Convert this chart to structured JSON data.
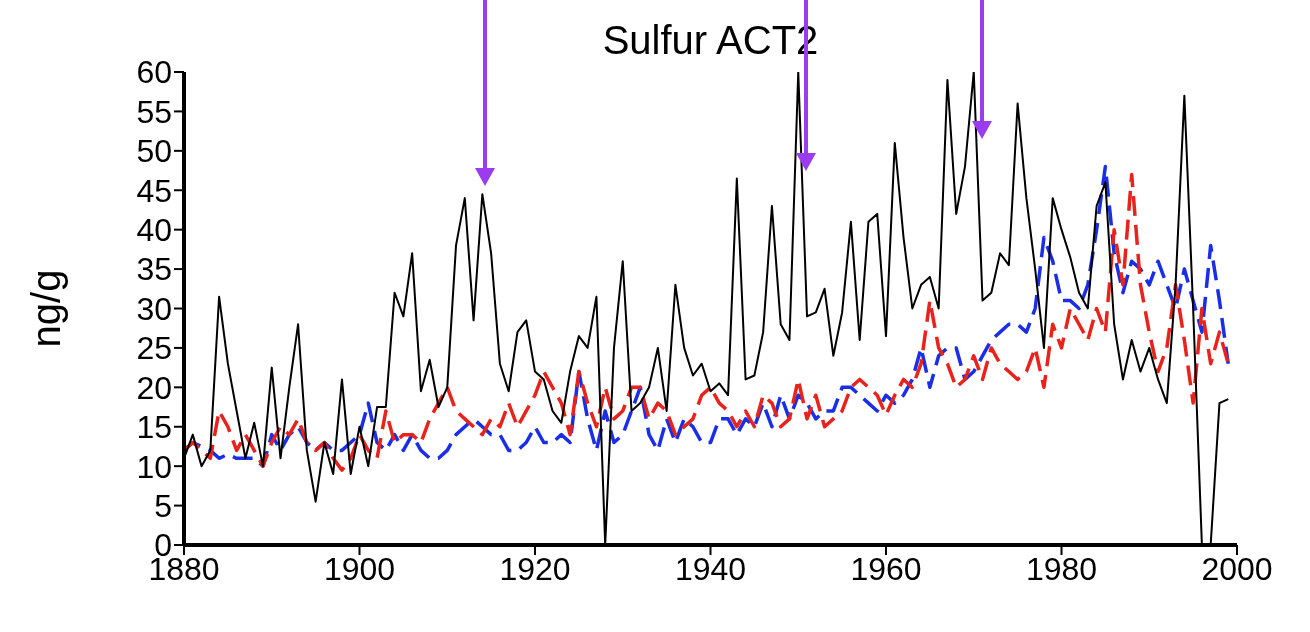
{
  "chart_data": {
    "type": "line",
    "title": "Sulfur ACT2",
    "ylabel": "ng/g",
    "x": [
      1880,
      1881,
      1882,
      1883,
      1884,
      1885,
      1886,
      1887,
      1888,
      1889,
      1890,
      1891,
      1892,
      1893,
      1894,
      1895,
      1896,
      1897,
      1898,
      1899,
      1900,
      1901,
      1902,
      1903,
      1904,
      1905,
      1906,
      1907,
      1908,
      1909,
      1910,
      1911,
      1912,
      1913,
      1914,
      1915,
      1916,
      1917,
      1918,
      1919,
      1920,
      1921,
      1922,
      1923,
      1924,
      1925,
      1926,
      1927,
      1928,
      1929,
      1930,
      1931,
      1932,
      1933,
      1934,
      1935,
      1936,
      1937,
      1938,
      1939,
      1940,
      1941,
      1942,
      1943,
      1944,
      1945,
      1946,
      1947,
      1948,
      1949,
      1950,
      1951,
      1952,
      1953,
      1954,
      1955,
      1956,
      1957,
      1958,
      1959,
      1960,
      1961,
      1962,
      1963,
      1964,
      1965,
      1966,
      1967,
      1968,
      1969,
      1970,
      1971,
      1972,
      1973,
      1974,
      1975,
      1976,
      1977,
      1978,
      1979,
      1980,
      1981,
      1982,
      1983,
      1984,
      1985,
      1986,
      1987,
      1988,
      1989,
      1990,
      1991,
      1992,
      1993,
      1994,
      1995,
      1996,
      1997,
      1998,
      1999
    ],
    "series": [
      {
        "color": "#000000",
        "line_style": "solid",
        "values": [
          11,
          14,
          10,
          12,
          31.5,
          23,
          17,
          11,
          15.5,
          10,
          22.5,
          11,
          20,
          28,
          12,
          5.5,
          13,
          9,
          21,
          9,
          15,
          10,
          17.5,
          17.5,
          32,
          29,
          37,
          19.5,
          23.5,
          17.5,
          20,
          38,
          44,
          28.5,
          44.5,
          37,
          23,
          19.5,
          27,
          28.5,
          22,
          21,
          17,
          15.5,
          22,
          26.5,
          25,
          31.5,
          0,
          25,
          36,
          17,
          18,
          20,
          25,
          17,
          33,
          25,
          21.5,
          23,
          19.5,
          20.5,
          19,
          46.5,
          21,
          21.5,
          27,
          43,
          28,
          26,
          60,
          29,
          29.5,
          32.5,
          24,
          29.5,
          41,
          26,
          41,
          42,
          26.5,
          51,
          39,
          30,
          33,
          34,
          30,
          59,
          42,
          48,
          60,
          31,
          32,
          37,
          35.5,
          56,
          44,
          35,
          25,
          44,
          40,
          36.5,
          32,
          30,
          43,
          46,
          28,
          21,
          26,
          22,
          25,
          21,
          18,
          33,
          57,
          30,
          0,
          0,
          18,
          18.5
        ]
      },
      {
        "color": "#e8231c",
        "line_style": "dashed",
        "values": [
          12,
          13,
          12,
          11,
          17,
          15,
          12,
          14,
          12,
          10,
          13,
          15,
          14,
          16,
          13,
          12,
          13,
          11,
          9.5,
          11,
          14,
          12,
          11,
          17,
          13,
          14,
          14,
          13,
          16,
          18,
          20,
          17,
          16,
          15,
          14,
          16,
          15,
          18,
          15,
          17,
          19,
          22,
          20,
          18,
          14,
          22,
          18,
          15,
          20,
          16,
          17,
          20,
          20,
          16,
          18,
          17,
          14,
          15,
          16,
          19,
          20,
          18,
          17,
          15,
          17,
          15,
          19,
          18,
          15,
          16,
          21,
          16,
          19,
          15,
          16,
          17,
          20,
          21,
          20,
          19,
          16.5,
          19,
          21,
          20,
          23,
          31,
          25,
          23,
          20,
          21,
          24,
          21,
          25,
          23,
          22,
          21,
          22,
          25,
          20,
          28,
          25,
          30,
          28,
          26,
          30,
          27,
          40,
          33,
          47,
          33,
          27,
          22,
          25,
          33,
          26,
          18,
          30,
          23,
          27,
          23
        ]
      },
      {
        "color": "#1a2ee8",
        "line_style": "dashed",
        "values": [
          12,
          13,
          12.5,
          12,
          11,
          11.5,
          11,
          11,
          11,
          10,
          14,
          12,
          14,
          15,
          13,
          12,
          13,
          12,
          12,
          13,
          14,
          18,
          13,
          12,
          14,
          12,
          14,
          12,
          11,
          11,
          12,
          14,
          15,
          16,
          15,
          14,
          14,
          12,
          12,
          13,
          15,
          13,
          13,
          14,
          13,
          22,
          16,
          12,
          17,
          13,
          14,
          17,
          20,
          14,
          12,
          16,
          13,
          16,
          15,
          13,
          13,
          16,
          16,
          14,
          16,
          15,
          18,
          15,
          19,
          16,
          19,
          18,
          16,
          17,
          17,
          20,
          20,
          19,
          18,
          17,
          19,
          18,
          19,
          21,
          25,
          20,
          24,
          25,
          25,
          21,
          22,
          24,
          26,
          27,
          28,
          28,
          27,
          30,
          39,
          36,
          31,
          31,
          30,
          33,
          40,
          48,
          37,
          32,
          36,
          35,
          33,
          36,
          33,
          30,
          35,
          31,
          27,
          38,
          31,
          23
        ]
      }
    ],
    "xlim": [
      1880,
      2000
    ],
    "xticks": [
      1880,
      1900,
      1920,
      1940,
      1960,
      1980,
      2000
    ],
    "ylim": [
      0,
      60
    ],
    "yticks": [
      0,
      5,
      10,
      15,
      20,
      25,
      30,
      35,
      40,
      45,
      50,
      55,
      60
    ],
    "grid": false,
    "legend": false,
    "marker": "none"
  }
}
